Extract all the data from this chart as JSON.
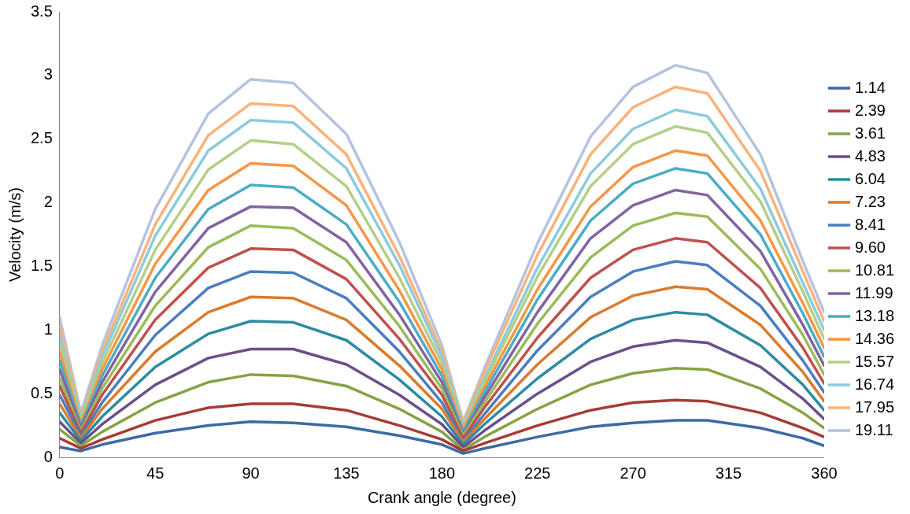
{
  "chart_data": {
    "type": "line",
    "xlabel": "Crank angle (degree)",
    "ylabel": "Velocity (m/s)",
    "legend": "right",
    "x": [
      0,
      10,
      20,
      45,
      70,
      90,
      110,
      135,
      160,
      180,
      190,
      200,
      225,
      250,
      270,
      290,
      305,
      330,
      350,
      360
    ],
    "xlim": [
      0,
      360
    ],
    "xticks": [
      0,
      45,
      90,
      135,
      180,
      225,
      270,
      315,
      360
    ],
    "ylim": [
      0,
      3.5
    ],
    "yticks": [
      0,
      0.5,
      1,
      1.5,
      2,
      2.5,
      3,
      3.5
    ],
    "series": [
      {
        "name": "1.14",
        "color": "#3c6aa6",
        "values": [
          0.08,
          0.05,
          0.1,
          0.19,
          0.25,
          0.28,
          0.27,
          0.24,
          0.17,
          0.1,
          0.03,
          0.07,
          0.16,
          0.24,
          0.27,
          0.29,
          0.29,
          0.23,
          0.15,
          0.09
        ]
      },
      {
        "name": "2.39",
        "color": "#a83a36",
        "values": [
          0.15,
          0.07,
          0.14,
          0.29,
          0.39,
          0.42,
          0.42,
          0.37,
          0.25,
          0.14,
          0.05,
          0.11,
          0.25,
          0.37,
          0.43,
          0.45,
          0.44,
          0.35,
          0.23,
          0.16
        ]
      },
      {
        "name": "3.61",
        "color": "#86a344",
        "values": [
          0.22,
          0.09,
          0.2,
          0.43,
          0.59,
          0.65,
          0.64,
          0.56,
          0.38,
          0.2,
          0.06,
          0.16,
          0.38,
          0.57,
          0.66,
          0.7,
          0.69,
          0.54,
          0.35,
          0.23
        ]
      },
      {
        "name": "4.83",
        "color": "#6b4e8c",
        "values": [
          0.28,
          0.11,
          0.26,
          0.57,
          0.78,
          0.85,
          0.85,
          0.73,
          0.49,
          0.26,
          0.08,
          0.21,
          0.5,
          0.75,
          0.87,
          0.92,
          0.9,
          0.71,
          0.46,
          0.3
        ]
      },
      {
        "name": "6.04",
        "color": "#2d8ba3",
        "values": [
          0.35,
          0.13,
          0.32,
          0.71,
          0.97,
          1.07,
          1.06,
          0.92,
          0.61,
          0.32,
          0.1,
          0.26,
          0.62,
          0.93,
          1.08,
          1.14,
          1.12,
          0.88,
          0.57,
          0.37
        ]
      },
      {
        "name": "7.23",
        "color": "#db7b2b",
        "values": [
          0.42,
          0.15,
          0.38,
          0.83,
          1.14,
          1.26,
          1.25,
          1.08,
          0.72,
          0.38,
          0.12,
          0.3,
          0.73,
          1.1,
          1.27,
          1.34,
          1.32,
          1.04,
          0.67,
          0.44
        ]
      },
      {
        "name": "8.41",
        "color": "#4a7dc0",
        "values": [
          0.49,
          0.17,
          0.43,
          0.96,
          1.33,
          1.46,
          1.45,
          1.25,
          0.83,
          0.43,
          0.13,
          0.34,
          0.84,
          1.26,
          1.46,
          1.54,
          1.51,
          1.19,
          0.76,
          0.51
        ]
      },
      {
        "name": "9.60",
        "color": "#c0504d",
        "values": [
          0.56,
          0.19,
          0.49,
          1.08,
          1.49,
          1.64,
          1.63,
          1.4,
          0.93,
          0.49,
          0.15,
          0.39,
          0.94,
          1.41,
          1.63,
          1.72,
          1.69,
          1.33,
          0.86,
          0.58
        ]
      },
      {
        "name": "10.81",
        "color": "#9bbb59",
        "values": [
          0.62,
          0.21,
          0.54,
          1.19,
          1.65,
          1.82,
          1.8,
          1.55,
          1.03,
          0.54,
          0.17,
          0.43,
          1.05,
          1.57,
          1.82,
          1.92,
          1.89,
          1.48,
          0.96,
          0.65
        ]
      },
      {
        "name": "11.99",
        "color": "#8064a2",
        "values": [
          0.69,
          0.23,
          0.59,
          1.3,
          1.8,
          1.97,
          1.96,
          1.69,
          1.12,
          0.59,
          0.18,
          0.47,
          1.14,
          1.72,
          1.98,
          2.1,
          2.06,
          1.62,
          1.04,
          0.72
        ]
      },
      {
        "name": "13.18",
        "color": "#4bacc6",
        "values": [
          0.76,
          0.25,
          0.64,
          1.41,
          1.95,
          2.14,
          2.12,
          1.83,
          1.22,
          0.64,
          0.2,
          0.51,
          1.24,
          1.86,
          2.15,
          2.27,
          2.23,
          1.75,
          1.13,
          0.79
        ]
      },
      {
        "name": "14.36",
        "color": "#f79646",
        "values": [
          0.83,
          0.27,
          0.69,
          1.52,
          2.1,
          2.31,
          2.29,
          1.98,
          1.31,
          0.69,
          0.22,
          0.55,
          1.32,
          1.97,
          2.28,
          2.41,
          2.37,
          1.86,
          1.21,
          0.86
        ]
      },
      {
        "name": "15.57",
        "color": "#b3cf86",
        "values": [
          0.9,
          0.29,
          0.74,
          1.63,
          2.26,
          2.49,
          2.46,
          2.13,
          1.41,
          0.74,
          0.23,
          0.59,
          1.42,
          2.13,
          2.46,
          2.6,
          2.55,
          2.01,
          1.3,
          0.93
        ]
      },
      {
        "name": "16.74",
        "color": "#8ccbdd",
        "values": [
          0.96,
          0.31,
          0.79,
          1.74,
          2.41,
          2.65,
          2.63,
          2.27,
          1.51,
          0.79,
          0.25,
          0.62,
          1.49,
          2.23,
          2.58,
          2.73,
          2.68,
          2.11,
          1.37,
          1.0
        ]
      },
      {
        "name": "17.95",
        "color": "#fab27b",
        "values": [
          1.03,
          0.33,
          0.83,
          1.83,
          2.53,
          2.78,
          2.76,
          2.38,
          1.58,
          0.83,
          0.27,
          0.67,
          1.59,
          2.38,
          2.75,
          2.91,
          2.86,
          2.25,
          1.46,
          1.07
        ]
      },
      {
        "name": "19.11",
        "color": "#b4c3df",
        "values": [
          1.1,
          0.35,
          0.88,
          1.95,
          2.7,
          2.97,
          2.94,
          2.54,
          1.69,
          0.88,
          0.28,
          0.7,
          1.68,
          2.52,
          2.91,
          3.08,
          3.02,
          2.38,
          1.54,
          1.14
        ]
      }
    ]
  }
}
